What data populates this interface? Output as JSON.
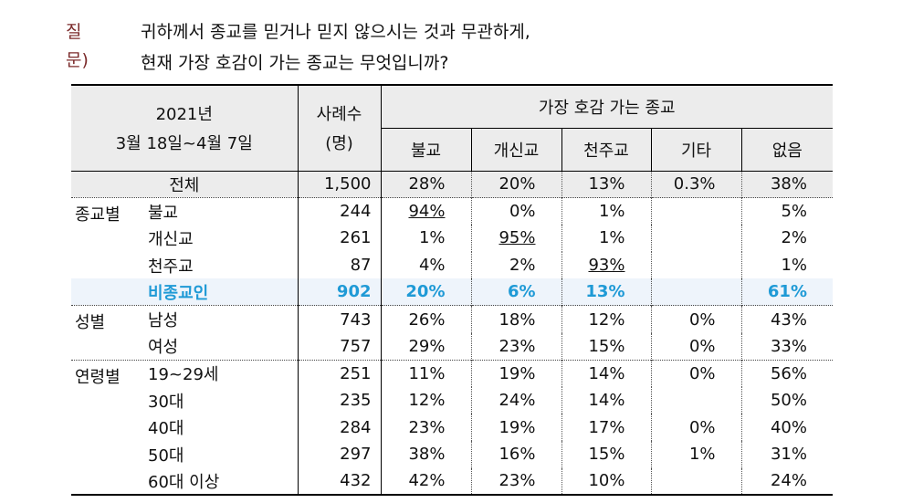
{
  "question": {
    "label": "질문)",
    "line1": "귀하께서 종교를 믿거나 믿지 않으시는 것과 무관하게,",
    "line2": "현재 가장 호감이 가는 종교는 무엇입니까?"
  },
  "header": {
    "period_year": "2021년",
    "period_range": "3월 18일~4월 7일",
    "sample_l1": "사례수",
    "sample_l2": "(명)",
    "group_title": "가장 호감 가는 종교",
    "cols": [
      "불교",
      "개신교",
      "천주교",
      "기타",
      "없음"
    ]
  },
  "rows": [
    {
      "group": "",
      "label": "전체",
      "n": "1,500",
      "v": [
        "28%",
        "20%",
        "13%",
        "0.3%",
        "38%"
      ]
    },
    {
      "group": "종교별",
      "label": "불교",
      "n": "244",
      "v": [
        "94%",
        "0%",
        "1%",
        "",
        "5%"
      ]
    },
    {
      "group": "",
      "label": "개신교",
      "n": "261",
      "v": [
        "1%",
        "95%",
        "1%",
        "",
        "2%"
      ]
    },
    {
      "group": "",
      "label": "천주교",
      "n": "87",
      "v": [
        "4%",
        "2%",
        "93%",
        "",
        "1%"
      ]
    },
    {
      "group": "",
      "label": "비종교인",
      "n": "902",
      "v": [
        "20%",
        "6%",
        "13%",
        "",
        "61%"
      ]
    },
    {
      "group": "성별",
      "label": "남성",
      "n": "743",
      "v": [
        "26%",
        "18%",
        "12%",
        "0%",
        "43%"
      ]
    },
    {
      "group": "",
      "label": "여성",
      "n": "757",
      "v": [
        "29%",
        "23%",
        "15%",
        "0%",
        "33%"
      ]
    },
    {
      "group": "연령별",
      "label": "19~29세",
      "n": "251",
      "v": [
        "11%",
        "19%",
        "14%",
        "0%",
        "56%"
      ]
    },
    {
      "group": "",
      "label": "30대",
      "n": "235",
      "v": [
        "12%",
        "24%",
        "14%",
        "",
        "50%"
      ]
    },
    {
      "group": "",
      "label": "40대",
      "n": "284",
      "v": [
        "23%",
        "19%",
        "17%",
        "0%",
        "40%"
      ]
    },
    {
      "group": "",
      "label": "50대",
      "n": "297",
      "v": [
        "38%",
        "16%",
        "15%",
        "1%",
        "31%"
      ]
    },
    {
      "group": "",
      "label": "60대 이상",
      "n": "432",
      "v": [
        "42%",
        "23%",
        "10%",
        "",
        "24%"
      ]
    }
  ],
  "highlight_color": "#1f9ad6"
}
